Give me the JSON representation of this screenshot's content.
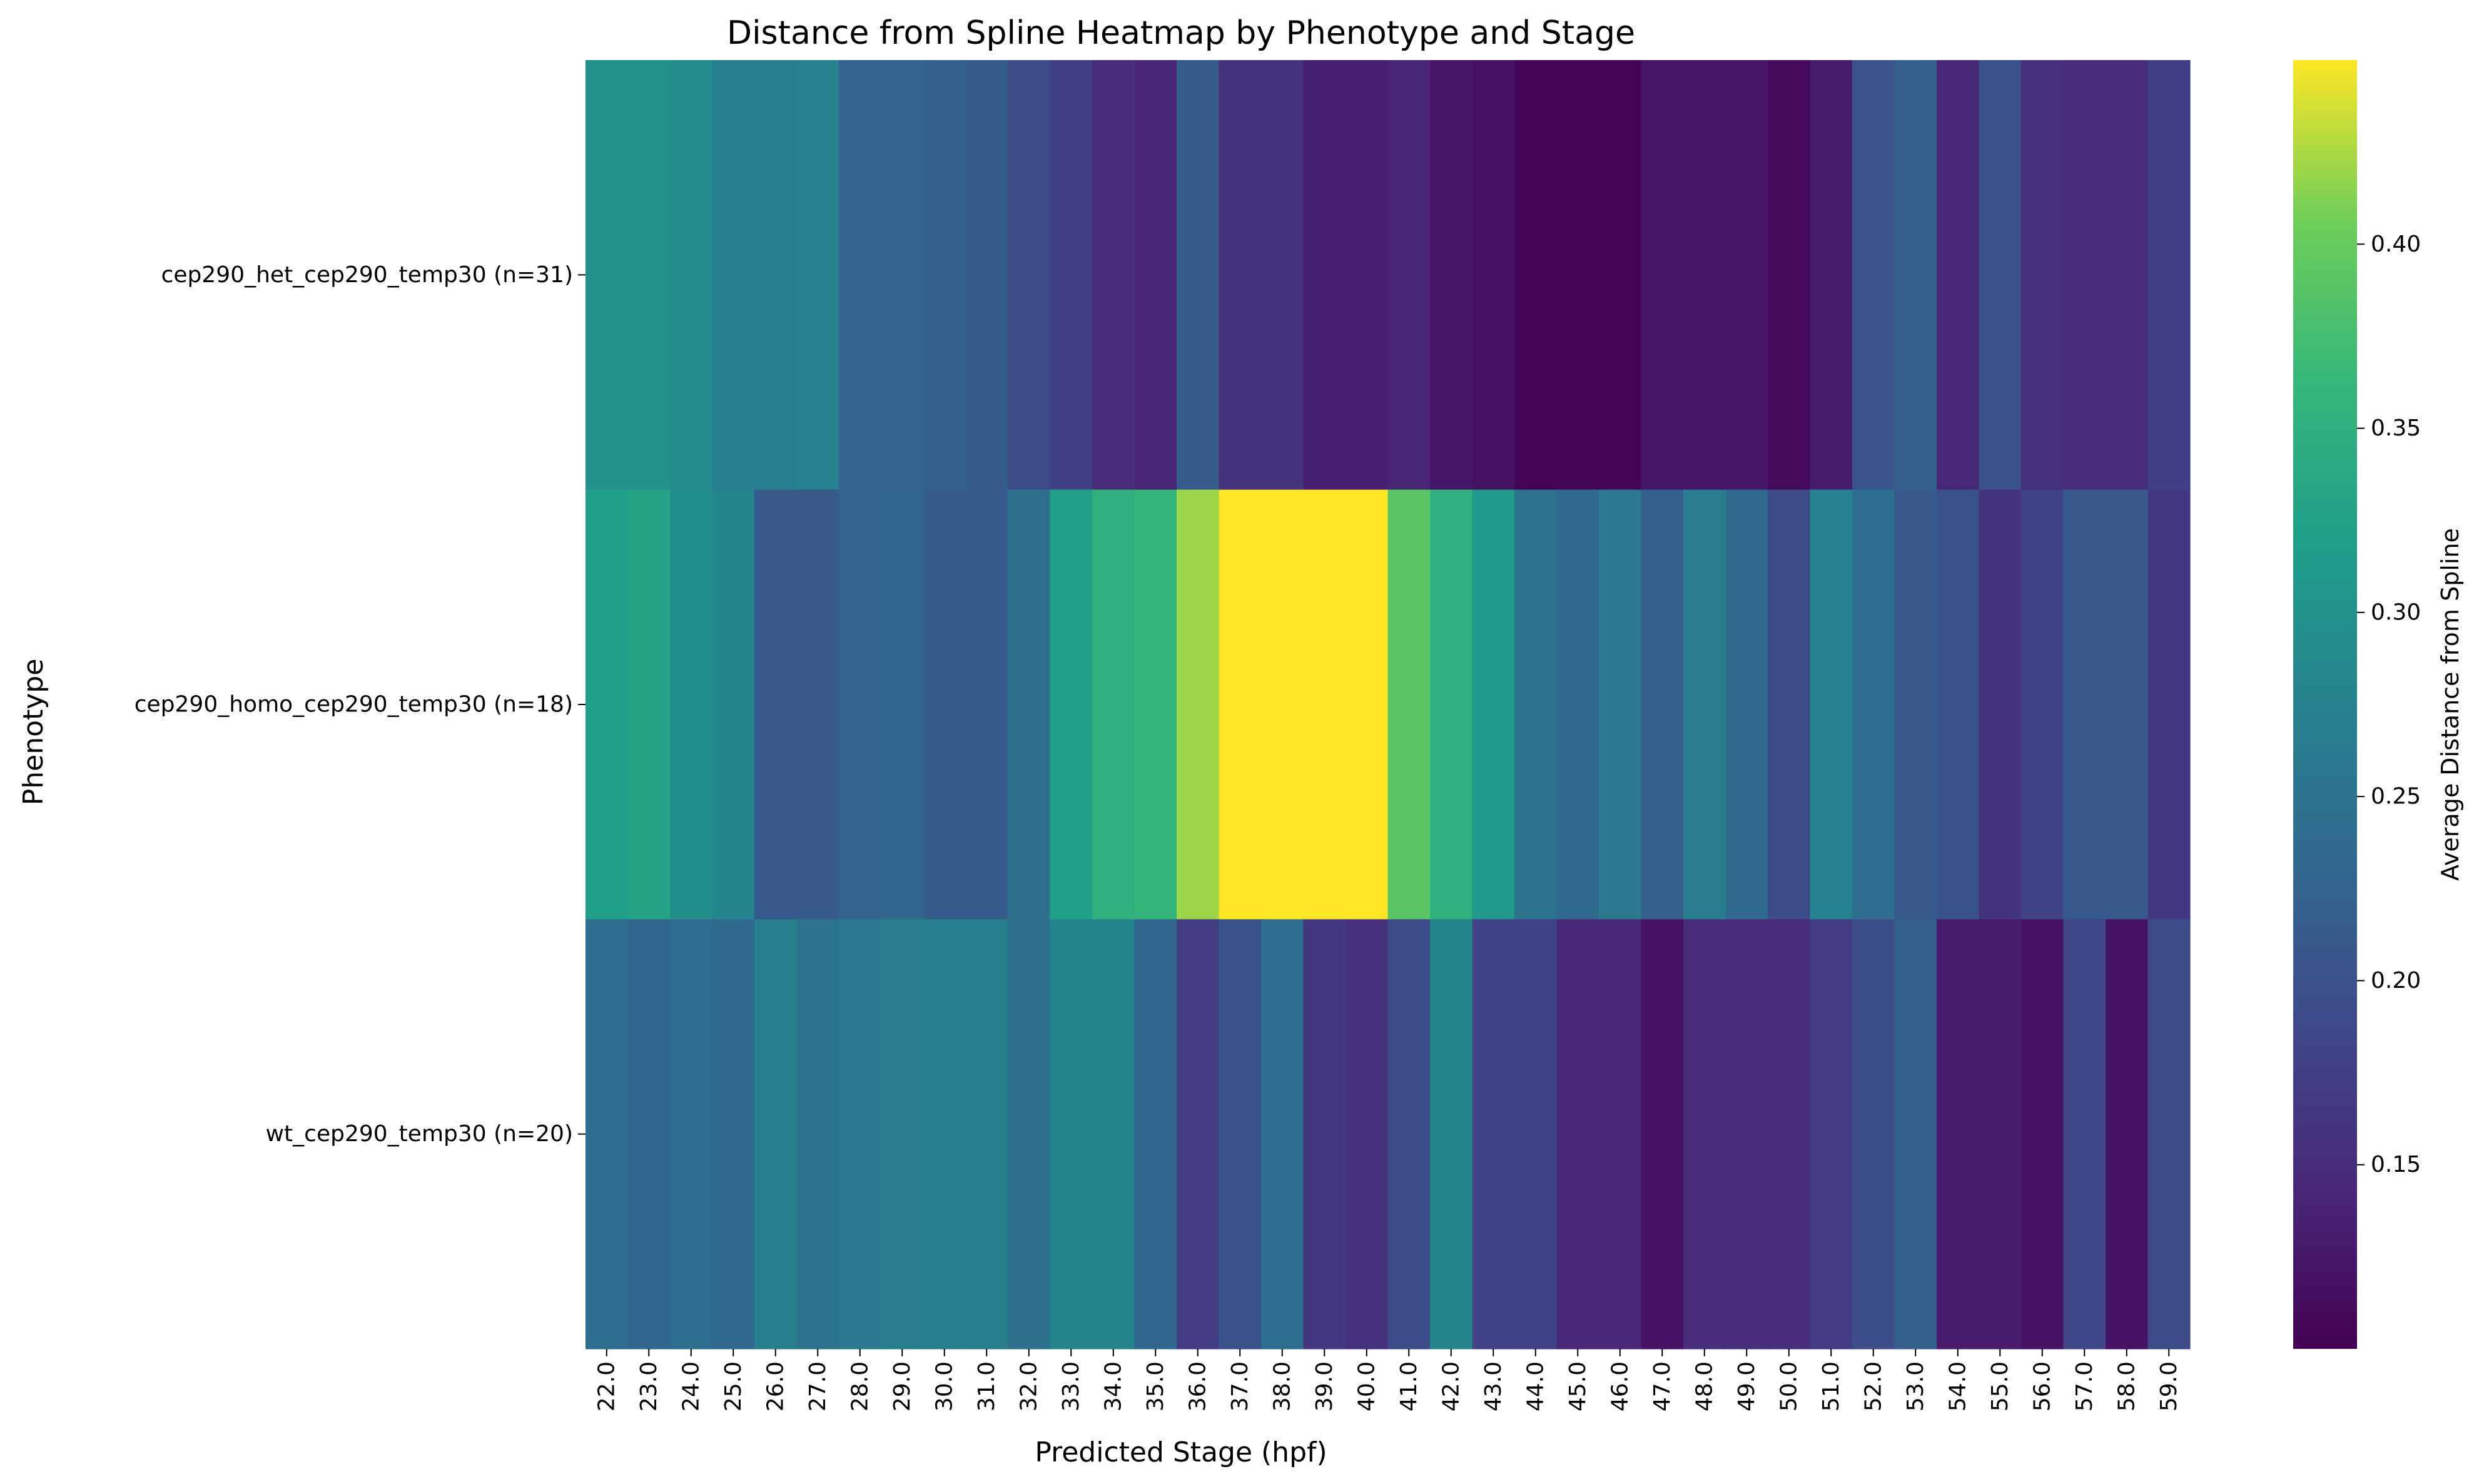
{
  "chart_data": {
    "type": "heatmap",
    "title": "Distance from Spline Heatmap by Phenotype and Stage",
    "xlabel": "Predicted Stage (hpf)",
    "ylabel": "Phenotype",
    "x": [
      "22.0",
      "23.0",
      "24.0",
      "25.0",
      "26.0",
      "27.0",
      "28.0",
      "29.0",
      "30.0",
      "31.0",
      "32.0",
      "33.0",
      "34.0",
      "35.0",
      "36.0",
      "37.0",
      "38.0",
      "39.0",
      "40.0",
      "41.0",
      "42.0",
      "43.0",
      "44.0",
      "45.0",
      "46.0",
      "47.0",
      "48.0",
      "49.0",
      "50.0",
      "51.0",
      "52.0",
      "53.0",
      "54.0",
      "55.0",
      "56.0",
      "57.0",
      "58.0",
      "59.0"
    ],
    "y": [
      "cep290_het_cep290_temp30 (n=31)",
      "cep290_homo_cep290_temp30 (n=18)",
      "wt_cep290_temp30 (n=20)"
    ],
    "values": [
      [
        0.3,
        0.3,
        0.29,
        0.27,
        0.27,
        0.275,
        0.225,
        0.225,
        0.22,
        0.215,
        0.19,
        0.175,
        0.15,
        0.14,
        0.215,
        0.16,
        0.16,
        0.135,
        0.135,
        0.14,
        0.125,
        0.12,
        0.105,
        0.105,
        0.105,
        0.125,
        0.125,
        0.125,
        0.11,
        0.13,
        0.205,
        0.22,
        0.145,
        0.2,
        0.155,
        0.15,
        0.15,
        0.175
      ],
      [
        0.32,
        0.33,
        0.295,
        0.28,
        0.21,
        0.21,
        0.225,
        0.23,
        0.215,
        0.215,
        0.245,
        0.32,
        0.35,
        0.36,
        0.42,
        0.45,
        0.45,
        0.45,
        0.45,
        0.39,
        0.35,
        0.31,
        0.25,
        0.235,
        0.26,
        0.22,
        0.265,
        0.235,
        0.19,
        0.275,
        0.24,
        0.21,
        0.2,
        0.16,
        0.18,
        0.21,
        0.21,
        0.165
      ],
      [
        0.24,
        0.23,
        0.24,
        0.235,
        0.27,
        0.25,
        0.26,
        0.265,
        0.27,
        0.27,
        0.245,
        0.28,
        0.28,
        0.23,
        0.17,
        0.2,
        0.24,
        0.165,
        0.155,
        0.19,
        0.28,
        0.18,
        0.18,
        0.145,
        0.145,
        0.12,
        0.15,
        0.15,
        0.15,
        0.17,
        0.195,
        0.22,
        0.13,
        0.13,
        0.12,
        0.185,
        0.12,
        0.19
      ]
    ],
    "colorbar": {
      "label": "Average Distance from Spline",
      "range": [
        0.1,
        0.45
      ],
      "ticks": [
        "0.15",
        "0.20",
        "0.25",
        "0.30",
        "0.35",
        "0.40"
      ],
      "tick_values": [
        0.15,
        0.2,
        0.25,
        0.3,
        0.35,
        0.4
      ],
      "colormap": "viridis"
    }
  }
}
